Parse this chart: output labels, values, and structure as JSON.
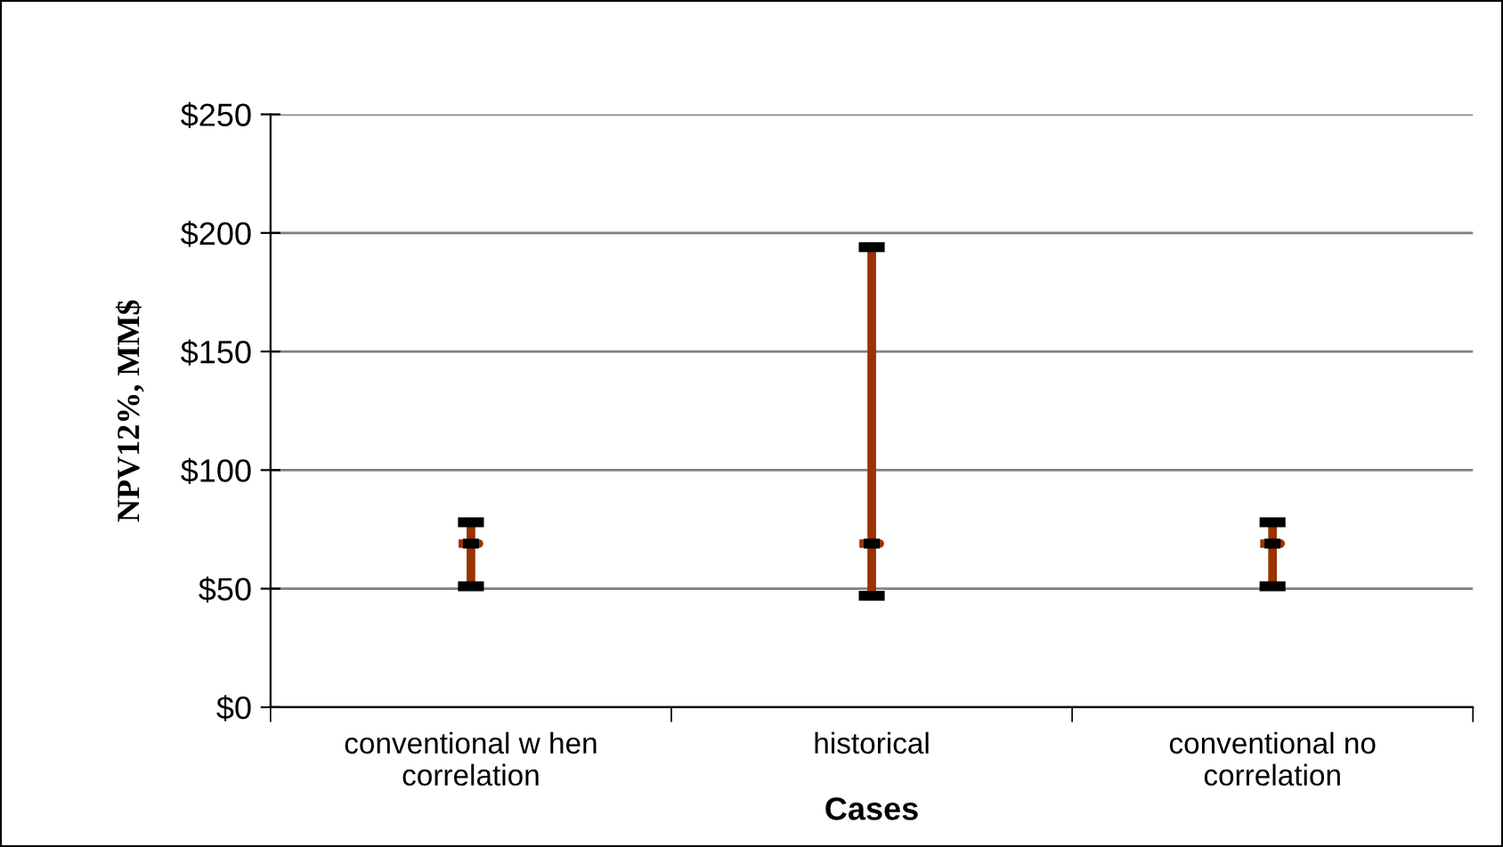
{
  "chart_data": {
    "type": "box",
    "xlabel": "Cases",
    "ylabel": "NPV12%, MM$",
    "categories": [
      "conventional w hen\ncorrelation",
      "historical",
      "conventional no\ncorrelation"
    ],
    "boxes": [
      {
        "low": 51,
        "q1": 69,
        "median": 69,
        "q3": 69,
        "high": 78
      },
      {
        "low": 47,
        "q1": 69,
        "median": 69,
        "q3": 69,
        "high": 194
      },
      {
        "low": 51,
        "q1": 69,
        "median": 69,
        "q3": 69,
        "high": 78
      }
    ],
    "color": "#993300",
    "ylim": [
      0,
      250
    ],
    "yticks": [
      {
        "value": 0,
        "label": "$0"
      },
      {
        "value": 50,
        "label": "$50"
      },
      {
        "value": 100,
        "label": "$100"
      },
      {
        "value": 150,
        "label": "$150"
      },
      {
        "value": 200,
        "label": "$200"
      },
      {
        "value": 250,
        "label": "$250"
      }
    ],
    "grid": "y"
  }
}
